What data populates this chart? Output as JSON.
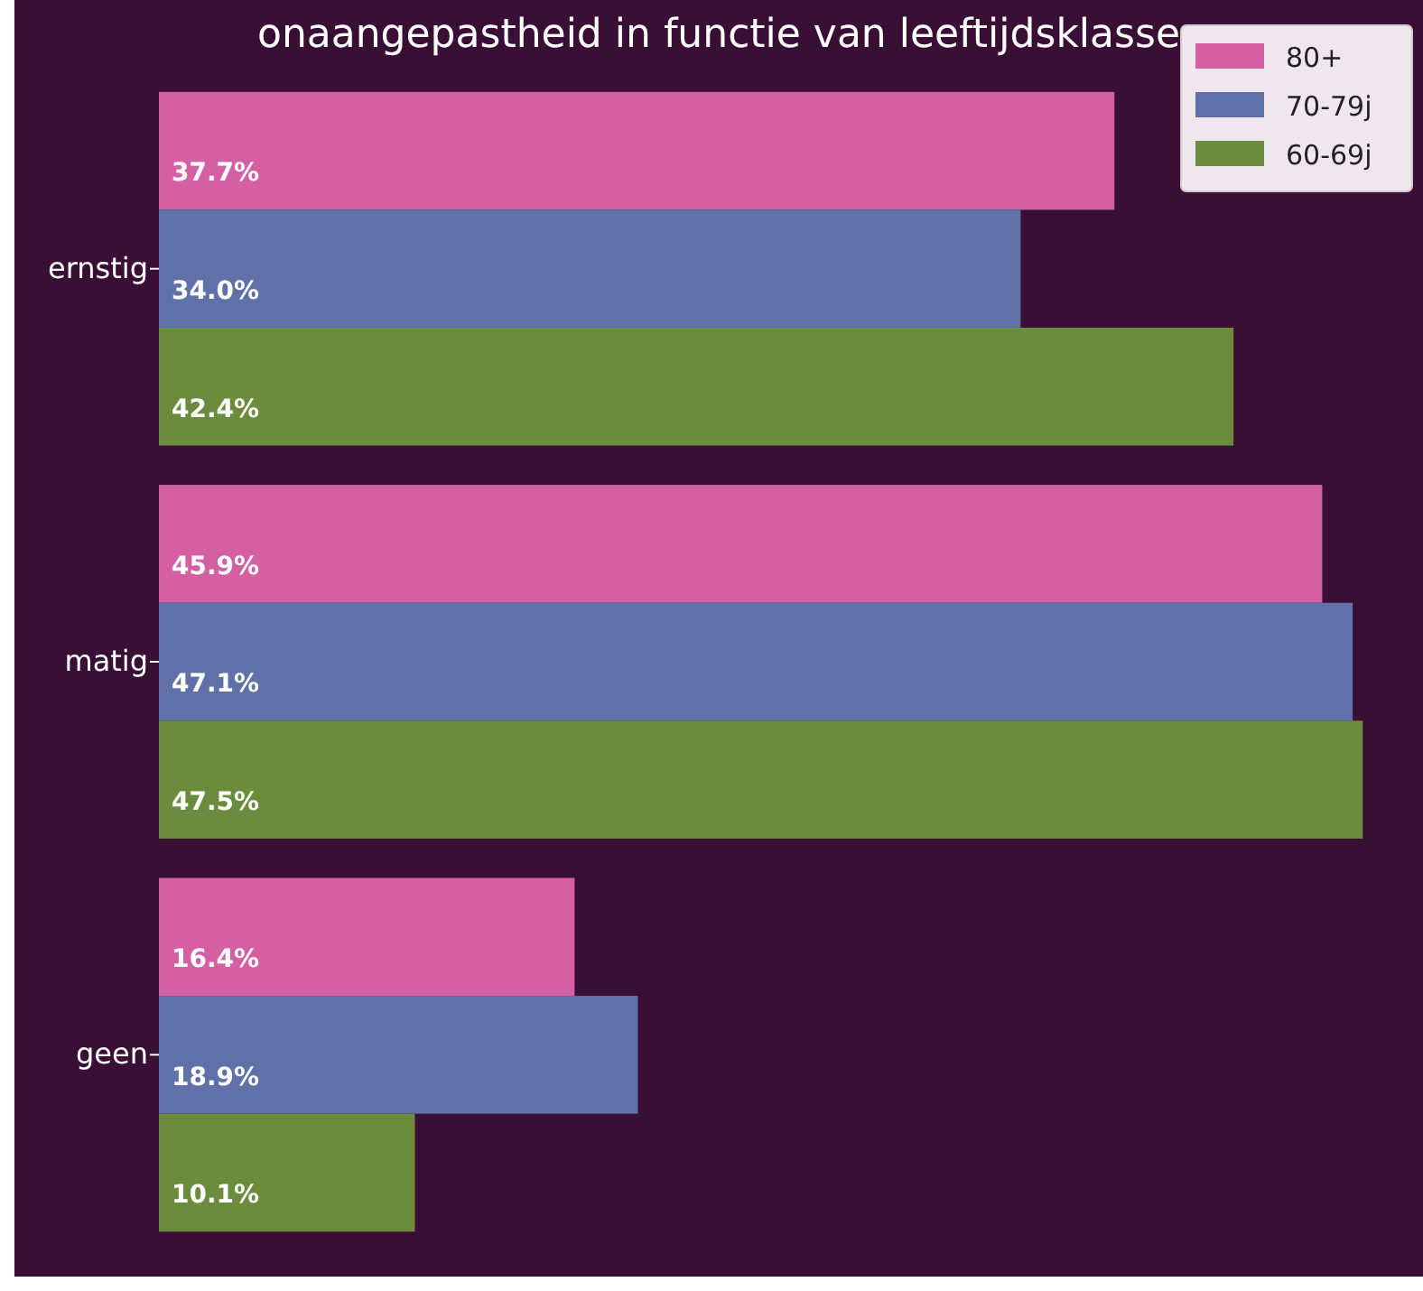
{
  "chart_data": {
    "type": "bar",
    "orientation": "horizontal",
    "title": "onaangepastheid in functie van leeftijdsklasse",
    "categories": [
      "ernstig",
      "matig",
      "geen"
    ],
    "series": [
      {
        "name": "80+",
        "color": "#d45fa2",
        "values": [
          37.7,
          45.9,
          16.4
        ],
        "value_labels": [
          "37.7%",
          "45.9%",
          "16.4%"
        ]
      },
      {
        "name": "70-79j",
        "color": "#6070a8",
        "values": [
          34.0,
          47.1,
          18.9
        ],
        "value_labels": [
          "34.0%",
          "47.1%",
          "18.9%"
        ]
      },
      {
        "name": "60-69j",
        "color": "#6b8c3c",
        "values": [
          42.4,
          47.5,
          10.1
        ],
        "value_labels": [
          "42.4%",
          "47.5%",
          "10.1%"
        ]
      }
    ],
    "legend": "top right",
    "tick_labels": "y"
  }
}
